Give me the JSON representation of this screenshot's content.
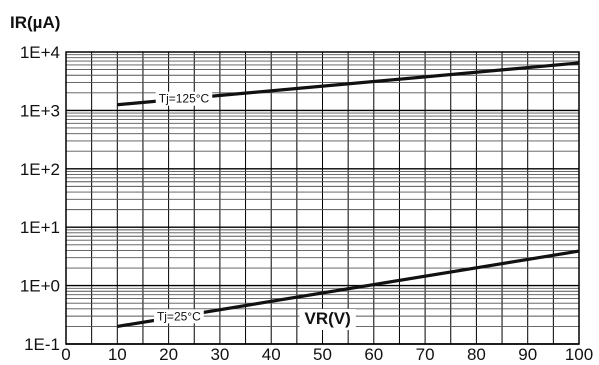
{
  "chart_data": {
    "type": "line",
    "ylabel": "IR(µA)",
    "xlabel": "VR(V)",
    "x_scale": "linear",
    "y_scale": "log",
    "xlim": [
      0,
      100
    ],
    "ylim": [
      0.1,
      10000
    ],
    "x_ticks": [
      "0",
      "10",
      "20",
      "30",
      "40",
      "50",
      "60",
      "70",
      "80",
      "90",
      "100"
    ],
    "y_ticks": [
      "1E+4",
      "1E+3",
      "1E+2",
      "1E+1",
      "1E+0",
      "1E-1"
    ],
    "grid": true,
    "series": [
      {
        "name": "Tj=125°C",
        "x": [
          10,
          100
        ],
        "y": [
          1250,
          6500
        ]
      },
      {
        "name": "Tj=25°C",
        "x": [
          10,
          100
        ],
        "y": [
          0.2,
          3.9
        ]
      }
    ]
  }
}
